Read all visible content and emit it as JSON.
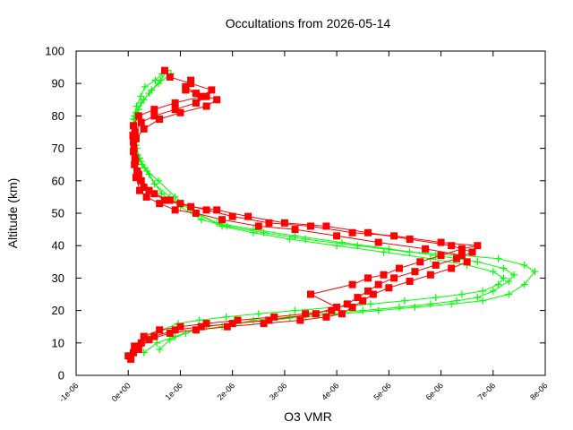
{
  "chart_data": {
    "type": "scatter",
    "title": "Occultations from 2026-05-14",
    "xlabel": "O3 VMR",
    "ylabel": "Altitude (km)",
    "xlim": [
      -1e-06,
      8e-06
    ],
    "ylim": [
      0,
      100
    ],
    "x_tick_labels": [
      "-1e-06",
      "0e+00",
      "1e-06",
      "2e-06",
      "3e-06",
      "4e-06",
      "5e-06",
      "6e-06",
      "7e-06",
      "8e-06"
    ],
    "y_tick_labels": [
      "0",
      "10",
      "20",
      "30",
      "40",
      "50",
      "60",
      "70",
      "80",
      "90",
      "100"
    ],
    "grid": false,
    "legend": "none",
    "series": [
      {
        "color": "#00ff00",
        "marker": "plus",
        "profiles": [
          {
            "x": [
              2.2e-07,
              3.6e-07,
              6.4e-07,
              9.6e-07,
              1.36e-06,
              1.88e-06,
              2.5e-06,
              3.2e-06,
              3.95e-06,
              4.65e-06,
              5.3e-06,
              5.9e-06,
              6.4e-06,
              6.8e-06,
              7.1e-06,
              7.2e-06,
              7e-06,
              6.5e-06,
              5.8e-06,
              4.9e-06,
              4e-06,
              3.1e-06,
              2.4e-06,
              1.8e-06,
              1.3e-06,
              9e-07,
              5.8e-07,
              3.6e-07,
              2.4e-07,
              1.6e-07,
              1.2e-07,
              1.1e-07,
              1.2e-07,
              1.6e-07,
              2.4e-07,
              3.2e-07,
              5.2e-07,
              6.5e-07
            ],
            "y": [
              9,
              12,
              14,
              16,
              17,
              18,
              19,
              20,
              21,
              22,
              23,
              24,
              25,
              26,
              28,
              30,
              32,
              34,
              36,
              38,
              40,
              42,
              44,
              46,
              50,
              55,
              60,
              63,
              66,
              70,
              74,
              77,
              80,
              83,
              86,
              89,
              91,
              93
            ]
          },
          {
            "x": [
              6e-07,
              8e-07,
              1.1e-06,
              1.5e-06,
              2e-06,
              2.7e-06,
              3.4e-06,
              4.1e-06,
              4.8e-06,
              5.5e-06,
              6.2e-06,
              6.8e-06,
              7.3e-06,
              7.6e-06,
              7.8e-06,
              7.6e-06,
              7.1e-06,
              6.4e-06,
              5.4e-06,
              4.4e-06,
              3.4e-06,
              2.6e-06,
              1.9e-06,
              1.4e-06,
              1e-06,
              6.4e-07,
              4e-07,
              2.6e-07,
              1.8e-07,
              1.3e-07,
              1.2e-07,
              1.3e-07,
              2e-07,
              3e-07,
              4.5e-07,
              6.2e-07,
              7.5e-07
            ],
            "y": [
              8,
              11,
              13,
              15,
              16,
              17,
              18,
              19,
              20,
              21,
              22,
              23,
              25,
              28,
              32,
              34,
              36,
              37,
              38,
              40,
              42,
              44,
              46,
              48,
              52,
              56,
              62,
              65,
              68,
              72,
              75,
              79,
              82,
              85,
              88,
              91,
              94
            ]
          },
          {
            "x": [
              3e-07,
              5.5e-07,
              9e-07,
              1.3e-06,
              1.8e-06,
              2.4e-06,
              3.1e-06,
              3.8e-06,
              4.5e-06,
              5.2e-06,
              5.8e-06,
              6.3e-06,
              6.7e-06,
              7e-06,
              7.3e-06,
              7.4e-06,
              7.2e-06,
              6.7e-06,
              5.9e-06,
              5e-06,
              4.1e-06,
              3.2e-06,
              2.4e-06,
              1.7e-06,
              1.2e-06,
              8e-07,
              5e-07,
              3.2e-07,
              2.2e-07,
              1.5e-07,
              1.1e-07,
              1e-07,
              1.5e-07,
              2.5e-07,
              4e-07,
              5.8e-07,
              8.2e-07
            ],
            "y": [
              7,
              10,
              12,
              14,
              15,
              17,
              18,
              19,
              20,
              21,
              22,
              23,
              24,
              26,
              29,
              31,
              33,
              35,
              37,
              39,
              41,
              43,
              45,
              47,
              51,
              55,
              59,
              64,
              67,
              71,
              76,
              79,
              81,
              84,
              87,
              90,
              93
            ]
          }
        ]
      },
      {
        "color": "#ff0000",
        "marker": "square",
        "profiles": [
          {
            "x": [
              0.0,
              1.2e-07,
              3e-07,
              6e-07,
              1e-06,
              1.5e-06,
              2.1e-06,
              2.8e-06,
              3.4e-06,
              3.9e-06,
              4.2e-06,
              4.4e-06,
              4.6e-06,
              4.8e-06,
              5.1e-06,
              5.5e-06,
              5.9e-06,
              6.3e-06,
              6.6e-06,
              6.2e-06,
              5.4e-06,
              4.6e-06,
              3.8e-06,
              3e-06,
              2.3e-06,
              1.7e-06,
              1.2e-06,
              8e-07,
              5e-07,
              3e-07,
              2e-07,
              1.4e-07,
              1.1e-07,
              9e-08,
              1e-07,
              2e-07,
              5e-07,
              9e-07,
              1.4e-06,
              1.6e-06,
              1.2e-06,
              8e-07,
              7e-07
            ],
            "y": [
              6,
              9,
              12,
              14,
              15,
              16,
              17,
              18,
              19,
              20,
              22,
              24,
              26,
              28,
              30,
              32,
              34,
              36,
              38,
              40,
              42,
              44,
              46,
              47,
              49,
              51,
              52,
              54,
              56,
              58,
              62,
              66,
              70,
              74,
              77,
              80,
              82,
              84,
              86,
              88,
              90,
              92,
              94
            ]
          },
          {
            "x": [
              5e-08,
              2e-07,
              4e-07,
              8e-07,
              1.3e-06,
              1.9e-06,
              2.6e-06,
              3.3e-06,
              3.8e-06,
              4.1e-06,
              4.3e-06,
              4.5e-06,
              4.7e-06,
              5e-06,
              5.4e-06,
              5.8e-06,
              6.2e-06,
              6.5e-06,
              6.4e-06,
              5.7e-06,
              4.8e-06,
              4e-06,
              3.2e-06,
              2.5e-06,
              1.8e-06,
              1.3e-06,
              9e-07,
              6e-07,
              3.5e-07,
              2.2e-07,
              1.5e-07,
              1.2e-07,
              1e-07,
              1.5e-07,
              3e-07,
              6e-07,
              1e-06,
              1.5e-06,
              1.7e-06,
              1.3e-06,
              1.1e-06
            ],
            "y": [
              5,
              8,
              11,
              13,
              14,
              15,
              16,
              17,
              18,
              19,
              21,
              23,
              25,
              27,
              29,
              31,
              33,
              35,
              37,
              39,
              41,
              43,
              45,
              46,
              48,
              50,
              51,
              53,
              55,
              57,
              61,
              65,
              69,
              73,
              76,
              79,
              81,
              83,
              85,
              87,
              89
            ]
          },
          {
            "x": [
              1e-07,
              2.5e-07,
              5e-07,
              9e-07,
              1.4e-06,
              2e-06,
              2.7e-06,
              3.6e-06,
              4e-06,
              3.5e-06,
              4.3e-06,
              4.6e-06,
              4.9e-06,
              5.2e-06,
              5.6e-06,
              6e-06,
              6.4e-06,
              6.7e-06,
              6e-06,
              5.1e-06,
              4.3e-06,
              3.5e-06,
              2.7e-06,
              2e-06,
              1.5e-06,
              1e-06,
              7e-07,
              4e-07,
              2.5e-07,
              1.7e-07,
              1.3e-07,
              1e-07,
              1.3e-07,
              2.5e-07,
              5e-07,
              9e-07,
              1.3e-06,
              1.5e-06,
              1.1e-06,
              1.2e-06
            ],
            "y": [
              7,
              10,
              12,
              14,
              15,
              16,
              17,
              19,
              21,
              25,
              28,
              30,
              31,
              33,
              35,
              37,
              39,
              40,
              41,
              43,
              44,
              46,
              47,
              49,
              51,
              53,
              54,
              57,
              60,
              63,
              67,
              72,
              75,
              78,
              80,
              82,
              84,
              86,
              88,
              91
            ]
          }
        ]
      }
    ]
  }
}
